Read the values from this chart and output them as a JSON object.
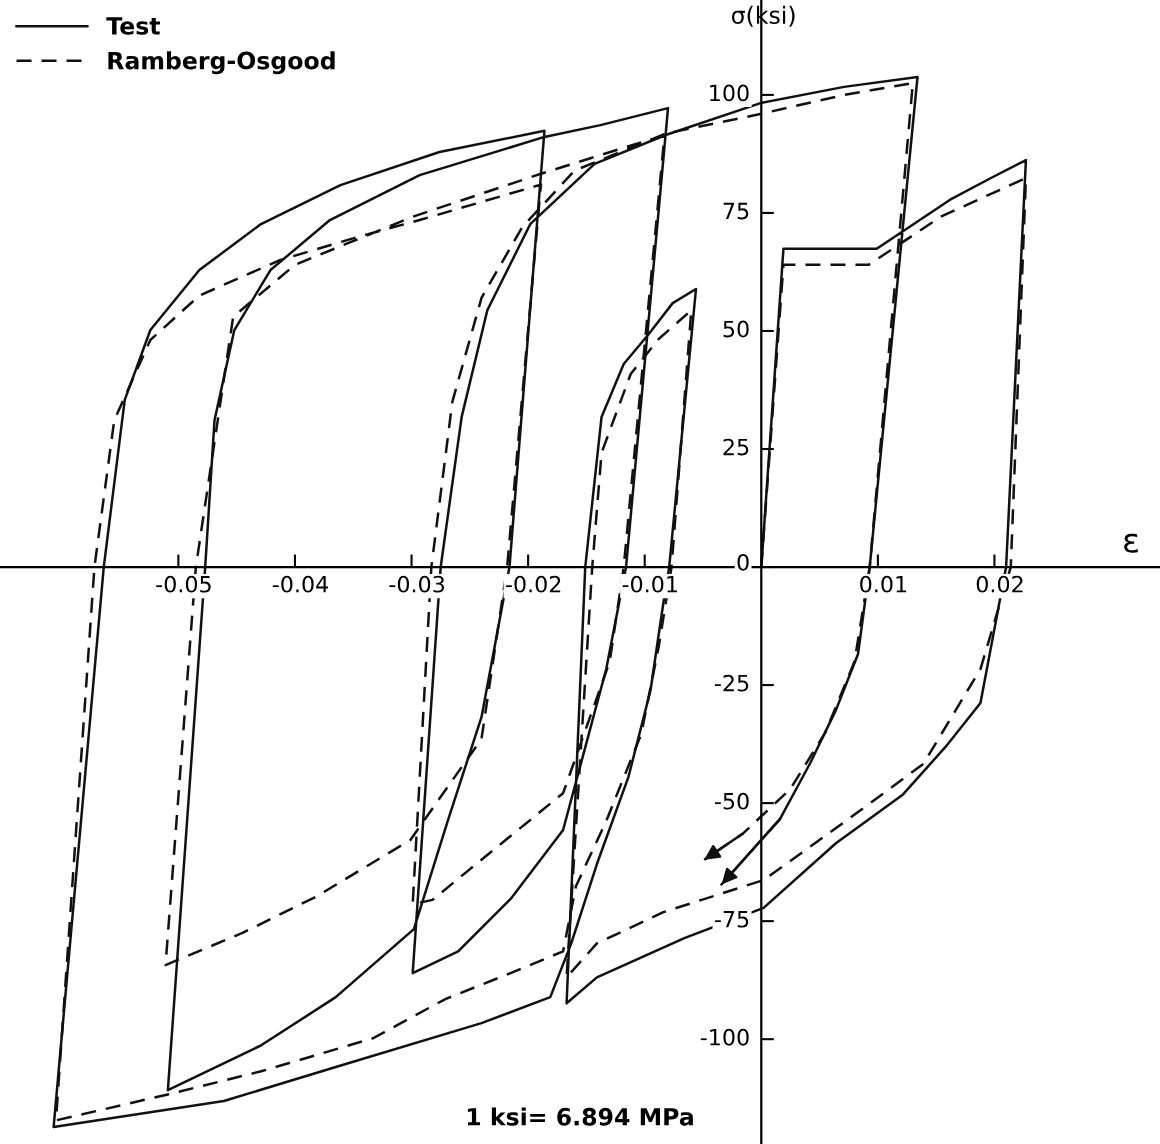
{
  "chart_data": {
    "type": "line",
    "xlabel": "ε",
    "ylabel": "σ(ksi)",
    "annotations": [
      "1 ksi= 6.894 MPa"
    ],
    "xlim": [
      -0.0653,
      0.0342
    ],
    "ylim": [
      -122.2,
      120.1
    ],
    "xticks": [
      -0.05,
      -0.04,
      -0.03,
      -0.02,
      -0.01,
      0.01,
      0.02
    ],
    "yticks": [
      -100,
      -75,
      -50,
      -25,
      0,
      25,
      50,
      75,
      100
    ],
    "legend": "top left",
    "marker": "none",
    "series": [
      {
        "name": "Test",
        "color": "#111111",
        "line_style": "solid",
        "x": [
          0,
          0.0019,
          0.0099,
          0.0162,
          0.0197,
          0.0227,
          0.021,
          0.0188,
          0.0158,
          0.0121,
          0.0064,
          0.0002,
          -0.0066,
          -0.0141,
          -0.0167,
          -0.0151,
          -0.0137,
          -0.0118,
          -0.0097,
          -0.0076,
          -0.0056,
          -0.0079,
          -0.0084,
          -0.0095,
          -0.0114,
          -0.0141,
          -0.0163,
          -0.0181,
          -0.024,
          -0.0365,
          -0.0461,
          -0.0607,
          -0.0564,
          -0.0546,
          -0.0524,
          -0.0482,
          -0.043,
          -0.0361,
          -0.0276,
          -0.0186,
          -0.0216,
          -0.024,
          -0.0269,
          -0.0298,
          -0.0365,
          -0.0429,
          -0.0509,
          -0.0477,
          -0.0469,
          -0.0452,
          -0.0421,
          -0.037,
          -0.0293,
          -0.0186,
          -0.0138,
          -0.008,
          -0.0116,
          -0.0133,
          -0.017,
          -0.0215,
          -0.026,
          -0.0299,
          -0.0275,
          -0.0257,
          -0.0235,
          -0.0198,
          -0.0143,
          -0.0082,
          0,
          0.0071,
          0.0134,
          0.0093,
          0.0083,
          0.0064,
          0.0042,
          0.0016,
          -0.0034
        ],
        "values": [
          0,
          67.4,
          67.4,
          77.8,
          82.4,
          86.2,
          0,
          -28.8,
          -38.1,
          -48.3,
          -58.5,
          -72.2,
          -78.6,
          -86.9,
          -92.4,
          0,
          31.8,
          43,
          49.2,
          55.9,
          58.9,
          0,
          -7.6,
          -26.1,
          -44.5,
          -62.9,
          -79.7,
          -91.1,
          -96.6,
          -105.9,
          -113.1,
          -118.6,
          0,
          35.4,
          50.2,
          62.9,
          72.5,
          80.9,
          87.9,
          92.4,
          0,
          -31.8,
          -53.8,
          -76.7,
          -91.1,
          -101.3,
          -110.8,
          0,
          31.1,
          50.2,
          62.9,
          73.5,
          83,
          91.1,
          93.6,
          97.2,
          0,
          -21.6,
          -55.7,
          -70.3,
          -81.4,
          -86,
          0,
          31.8,
          54.4,
          72.7,
          85.4,
          91.5,
          98.3,
          101.7,
          103.8,
          0,
          -18.4,
          -30.3,
          -41.5,
          -53.4,
          -67.2
        ]
      },
      {
        "name": "Ramberg-Osgood",
        "color": "#111111",
        "line_style": "dashed",
        "x": [
          0,
          0.0019,
          0.0092,
          0.0154,
          0.0227,
          0.0214,
          0.0188,
          0.0139,
          0.0083,
          0.0046,
          0.0002,
          -0.0084,
          -0.0141,
          -0.0167,
          -0.0145,
          -0.0137,
          -0.0112,
          -0.0088,
          -0.006,
          -0.0077,
          -0.0088,
          -0.0103,
          -0.0133,
          -0.0159,
          -0.017,
          -0.0215,
          -0.0271,
          -0.0333,
          -0.0429,
          -0.0509,
          -0.0605,
          -0.0572,
          -0.0555,
          -0.0524,
          -0.0482,
          -0.0413,
          -0.0345,
          -0.0293,
          -0.0189,
          -0.0218,
          -0.024,
          -0.0301,
          -0.0381,
          -0.0445,
          -0.0511,
          -0.0485,
          -0.0453,
          -0.04,
          -0.0299,
          -0.0189,
          -0.0083,
          -0.0118,
          -0.013,
          -0.017,
          -0.0252,
          -0.0282,
          -0.0299,
          -0.0283,
          -0.0265,
          -0.024,
          -0.0205,
          -0.016,
          -0.0082,
          0,
          0.0071,
          0.013,
          0.0093,
          0.008,
          0.0055,
          0.0025,
          -0.0016,
          -0.0049
        ],
        "values": [
          0,
          64,
          64,
          74.2,
          82.4,
          0,
          -21.6,
          -41.7,
          -51.9,
          -58.5,
          -66.3,
          -73.1,
          -79.7,
          -86.9,
          0,
          24.2,
          40.9,
          48.3,
          54.4,
          0,
          -16.9,
          -35.4,
          -53.8,
          -67.6,
          -81.4,
          -86,
          -91.5,
          -99.8,
          -106.8,
          -111.7,
          -117.2,
          0,
          31.1,
          48.1,
          57.5,
          65,
          70,
          73.5,
          81,
          0,
          -36.4,
          -57.8,
          -69.7,
          -77.5,
          -84.3,
          0,
          53,
          64,
          74.2,
          83.3,
          91.5,
          0,
          -20,
          -47.9,
          -64.4,
          -70.5,
          -71.4,
          0,
          35,
          57,
          72,
          84,
          91.8,
          96,
          100,
          102.5,
          0,
          -20,
          -35,
          -47,
          -56.5,
          -62
        ]
      }
    ]
  }
}
